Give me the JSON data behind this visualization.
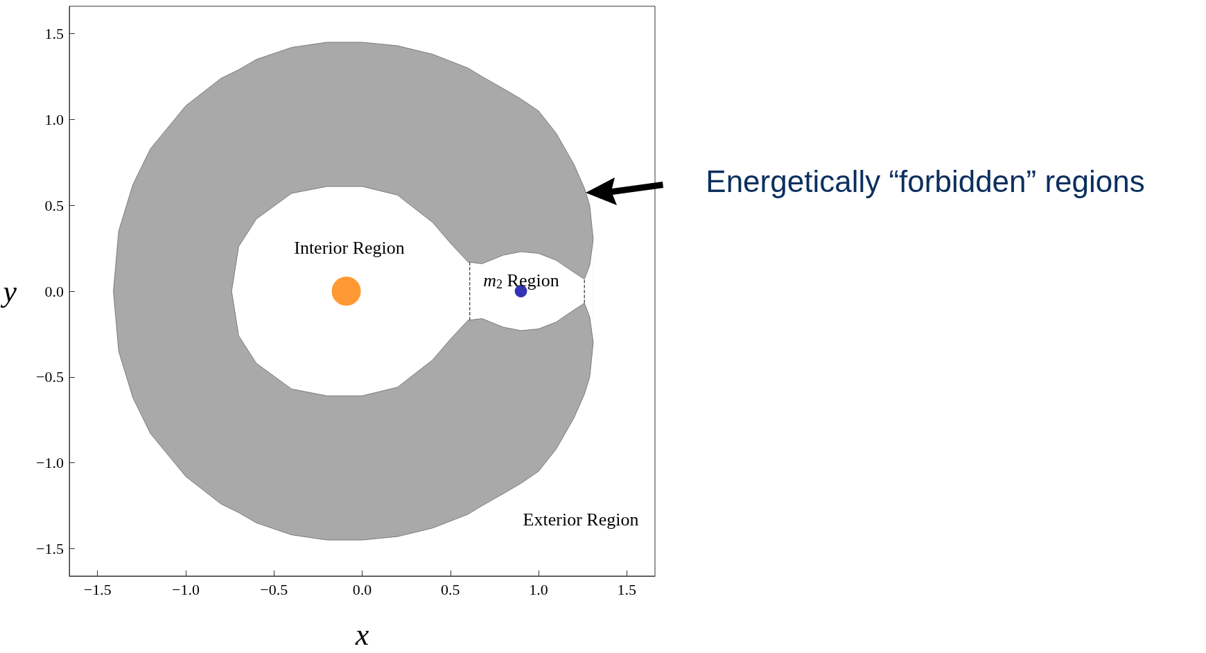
{
  "chart_data": {
    "type": "area",
    "xlabel": "x",
    "ylabel": "y",
    "xlim": [
      -1.66,
      1.66
    ],
    "ylim": [
      -1.66,
      1.66
    ],
    "xticks": [
      {
        "value": -1.5,
        "label": "−1.5"
      },
      {
        "value": -1,
        "label": "−1.0"
      },
      {
        "value": -0.5,
        "label": "−0.5"
      },
      {
        "value": 0,
        "label": "0.0"
      },
      {
        "value": 0.5,
        "label": "0.5"
      },
      {
        "value": 1,
        "label": "1.0"
      },
      {
        "value": 1.5,
        "label": "1.5"
      }
    ],
    "yticks": [
      {
        "value": -1.5,
        "label": "−1.5"
      },
      {
        "value": -1,
        "label": "−1.0"
      },
      {
        "value": -0.5,
        "label": "−0.5"
      },
      {
        "value": 0,
        "label": "0.0"
      },
      {
        "value": 0.5,
        "label": "0.5"
      },
      {
        "value": 1,
        "label": "1.0"
      },
      {
        "value": 1.5,
        "label": "1.5"
      }
    ],
    "series": [
      {
        "color": "#a9a9a9",
        "x": [
          -1.41,
          -1.38,
          -1.3,
          -1.2,
          -1.0,
          -0.8,
          -0.74,
          -0.7,
          -0.6,
          -0.4,
          -0.2,
          0,
          0.2,
          0.4,
          0.5,
          0.6,
          0.68,
          0.8,
          0.9,
          1.0,
          1.1,
          1.2,
          1.26,
          1.29,
          1.31
        ],
        "values": [
          0,
          0.35,
          0.62,
          0.83,
          1.08,
          1.24,
          1.27,
          1.29,
          1.35,
          1.42,
          1.45,
          1.45,
          1.43,
          1.38,
          1.34,
          1.3,
          1.25,
          1.18,
          1.12,
          1.05,
          0.92,
          0.74,
          0.6,
          0.5,
          0.3
        ]
      },
      {
        "color": "#a9a9a9",
        "x": [
          -1.41,
          -1.38,
          -1.3,
          -1.2,
          -1.0,
          -0.8,
          -0.74,
          -0.7,
          -0.6,
          -0.4,
          -0.2,
          0,
          0.2,
          0.4,
          0.5,
          0.6,
          0.68,
          0.8,
          0.9,
          1.0,
          1.1,
          1.2,
          1.26,
          1.29,
          1.31
        ],
        "values": [
          0,
          -0.35,
          -0.62,
          -0.83,
          -1.08,
          -1.24,
          -1.27,
          -1.29,
          -1.35,
          -1.42,
          -1.45,
          -1.45,
          -1.43,
          -1.38,
          -1.34,
          -1.3,
          -1.25,
          -1.18,
          -1.12,
          -1.05,
          -0.92,
          -0.74,
          -0.6,
          -0.5,
          -0.3
        ]
      },
      {
        "color": "#ffffff",
        "x": [
          -0.74,
          -0.7,
          -0.6,
          -0.4,
          -0.2,
          0,
          0.2,
          0.4,
          0.5,
          0.6,
          0.68,
          0.8,
          0.9,
          1.0,
          1.1,
          1.2,
          1.26,
          1.29,
          1.31
        ],
        "values": [
          0,
          0.26,
          0.42,
          0.57,
          0.61,
          0.61,
          0.56,
          0.4,
          0.28,
          0.17,
          0.16,
          0.21,
          0.23,
          0.22,
          0.18,
          0.11,
          0.07,
          0.15,
          0.3
        ]
      },
      {
        "color": "#ffffff",
        "x": [
          -0.74,
          -0.7,
          -0.6,
          -0.4,
          -0.2,
          0,
          0.2,
          0.4,
          0.5,
          0.6,
          0.68,
          0.8,
          0.9,
          1.0,
          1.1,
          1.2,
          1.26,
          1.29,
          1.31
        ],
        "values": [
          0,
          -0.26,
          -0.42,
          -0.57,
          -0.61,
          -0.61,
          -0.56,
          -0.4,
          -0.28,
          -0.17,
          -0.16,
          -0.21,
          -0.23,
          -0.22,
          -0.18,
          -0.11,
          -0.07,
          -0.15,
          -0.3
        ]
      },
      {
        "type": "line",
        "color": "#333333",
        "line_style": "dashed",
        "marker": "none",
        "x": [
          0.61,
          0.61
        ],
        "values": [
          -0.17,
          0.17
        ]
      },
      {
        "type": "line",
        "color": "#333333",
        "line_style": "dashed",
        "marker": "none",
        "x": [
          1.26,
          1.26
        ],
        "values": [
          -0.07,
          0.07
        ]
      },
      {
        "type": "bubble",
        "x": [
          -0.09,
          0.9
        ],
        "values": [
          0,
          0
        ],
        "sizes": [
          1,
          0.18
        ],
        "colors": [
          "#ff8000",
          "#0000a0"
        ]
      }
    ],
    "annotations": [
      "Interior Region",
      "m$_{2}$ Region",
      "Exterior Region",
      "Energetically “forbidden” regions"
    ]
  }
}
